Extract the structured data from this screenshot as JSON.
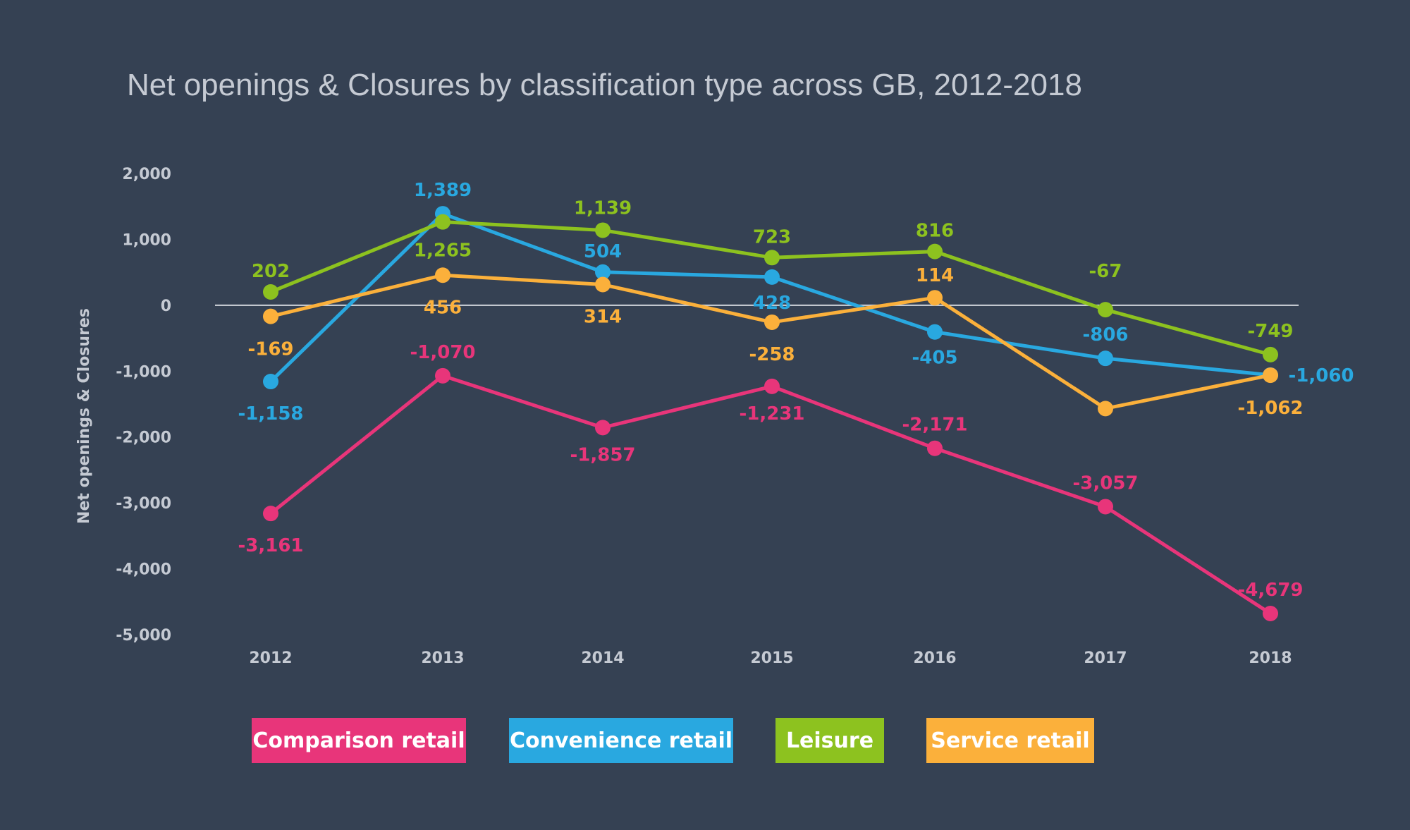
{
  "chart_data": {
    "type": "line",
    "title": "Net openings & Closures by classification type across GB, 2012-2018",
    "ylabel": "Net openings & Closures",
    "xlabel": "",
    "categories": [
      "2012",
      "2013",
      "2014",
      "2015",
      "2016",
      "2017",
      "2018"
    ],
    "ylim": [
      -5000,
      2000
    ],
    "yticks": [
      2000,
      1000,
      0,
      -1000,
      -2000,
      -3000,
      -4000,
      -5000
    ],
    "ytick_labels": [
      "2,000",
      "1,000",
      "0",
      "-1,000",
      "-2,000",
      "-3,000",
      "-4,000",
      "-5,000"
    ],
    "grid": false,
    "zero_line": true,
    "legend_position": "bottom",
    "series": [
      {
        "name": "Comparison retail",
        "color": "#e8357a",
        "values": [
          -3161,
          -1070,
          -1857,
          -1231,
          -2171,
          -3057,
          -4679
        ],
        "labels": [
          "-3,161",
          "-1,070",
          "-1,857",
          "-1,231",
          "-2,171",
          "-3,057",
          "-4,679"
        ]
      },
      {
        "name": "Convenience retail",
        "color": "#29a8e0",
        "values": [
          -1158,
          1389,
          504,
          428,
          -405,
          -806,
          -1060
        ],
        "labels": [
          "-1,158",
          "1,389",
          "504",
          "428",
          "-405",
          "-806",
          "-1,060"
        ]
      },
      {
        "name": "Leisure",
        "color": "#8dc21f",
        "values": [
          202,
          1265,
          1139,
          723,
          816,
          -67,
          -749
        ],
        "labels": [
          "202",
          "1,265",
          "1,139",
          "723",
          "816",
          "-67",
          "-749"
        ]
      },
      {
        "name": "Service retail",
        "color": "#fbb03b",
        "values": [
          -169,
          456,
          314,
          -258,
          114,
          -1568,
          -1062
        ],
        "labels": [
          "-169",
          "456",
          "314",
          "-258",
          "114",
          "",
          "-1,062"
        ]
      }
    ]
  }
}
